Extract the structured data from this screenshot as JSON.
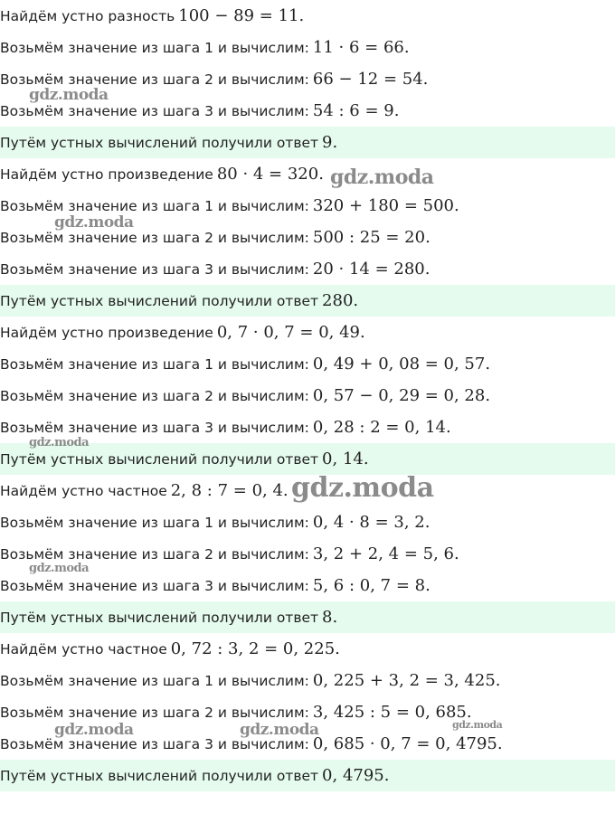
{
  "blocks": [
    {
      "lines": [
        [
          "Найдём устно разность",
          "100 − 89 = 11."
        ],
        [
          "Возьмём значение из шага 1 и вычислим:",
          "11 · 6 = 66."
        ],
        [
          "Возьмём значение из шага 2 и вычислим:",
          "66 − 12 = 54."
        ],
        [
          "Возьмём значение из шага 3 и вычислим:",
          "54 : 6 = 9."
        ]
      ],
      "answer": [
        "Путём устных вычислений получили ответ",
        "9."
      ]
    },
    {
      "lines": [
        [
          "Найдём устно произведение",
          "80 · 4 = 320."
        ],
        [
          "Возьмём значение из шага 1 и вычислим:",
          "320 + 180 = 500."
        ],
        [
          "Возьмём значение из шага 2 и вычислим:",
          "500 : 25 = 20."
        ],
        [
          "Возьмём значение из шага 3 и вычислим:",
          "20 · 14 = 280."
        ]
      ],
      "answer": [
        "Путём устных вычислений получили ответ",
        "280."
      ]
    },
    {
      "lines": [
        [
          "Найдём устно произведение",
          "0, 7 · 0, 7 = 0, 49."
        ],
        [
          "Возьмём значение из шага 1 и вычислим:",
          "0, 49 + 0, 08 = 0, 57."
        ],
        [
          "Возьмём значение из шага 2 и вычислим:",
          "0, 57 − 0, 29 = 0, 28."
        ],
        [
          "Возьмём значение из шага 3 и вычислим:",
          "0, 28 : 2 = 0, 14."
        ]
      ],
      "answer": [
        "Путём устных вычислений получили ответ",
        "0, 14."
      ]
    },
    {
      "lines": [
        [
          "Найдём устно частное",
          "2, 8 : 7 = 0, 4."
        ],
        [
          "Возьмём значение из шага 1 и вычислим:",
          "0, 4 · 8 = 3, 2."
        ],
        [
          "Возьмём значение из шага 2 и вычислим:",
          "3, 2 + 2, 4 = 5, 6."
        ],
        [
          "Возьмём значение из шага 3 и вычислим:",
          "5, 6 : 0, 7 = 8."
        ]
      ],
      "answer": [
        "Путём устных вычислений получили ответ",
        "8."
      ]
    },
    {
      "lines": [
        [
          "Найдём устно частное",
          "0, 72 : 3, 2 = 0, 225."
        ],
        [
          "Возьмём значение из шага 1 и вычислим:",
          "0, 225 + 3, 2 = 3, 425."
        ],
        [
          "Возьмём значение из шага 2 и вычислим:",
          "3, 425 : 5 = 0, 685."
        ],
        [
          "Возьмём значение из шага 3 и вычислим:",
          "0, 685 · 0, 7 = 0, 4795."
        ]
      ],
      "answer": [
        "Путём устных вычислений получили ответ",
        "0, 4795."
      ]
    }
  ],
  "watermark": "gdz.moda"
}
